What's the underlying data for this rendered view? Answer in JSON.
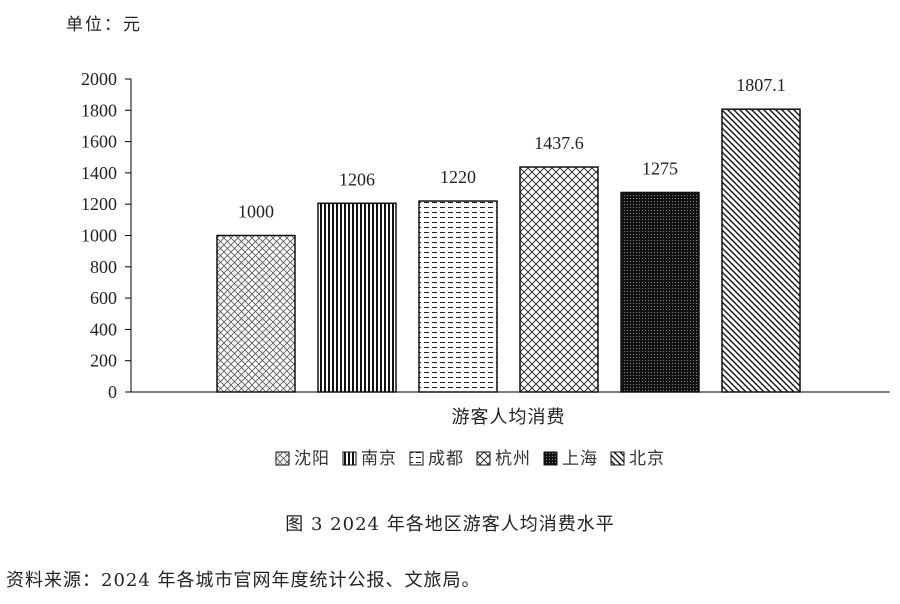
{
  "unit_label": "单位：元",
  "caption": "图 3 2024 年各地区游客人均消费水平",
  "source": "资料来源：2024 年各城市官网年度统计公报、文旅局。",
  "chart_data": {
    "type": "bar",
    "categories": [
      "游客人均消费"
    ],
    "series": [
      {
        "name": "沈阳",
        "values": [
          1000
        ],
        "label": "1000",
        "pattern": "diag-cross-light"
      },
      {
        "name": "南京",
        "values": [
          1206
        ],
        "label": "1206",
        "pattern": "vertical"
      },
      {
        "name": "成都",
        "values": [
          1220
        ],
        "label": "1220",
        "pattern": "horizontal-dash"
      },
      {
        "name": "杭州",
        "values": [
          1437.6
        ],
        "label": "1437.6",
        "pattern": "diag-cross"
      },
      {
        "name": "上海",
        "values": [
          1275
        ],
        "label": "1275",
        "pattern": "dense-grid"
      },
      {
        "name": "北京",
        "values": [
          1807.1
        ],
        "label": "1807.1",
        "pattern": "diag-down"
      }
    ],
    "ylim": [
      0,
      2000
    ],
    "yticks": [
      "0",
      "200",
      "400",
      "600",
      "800",
      "1000",
      "1200",
      "1400",
      "1600",
      "1800",
      "2000"
    ],
    "legend_position": "bottom",
    "grid": false
  }
}
